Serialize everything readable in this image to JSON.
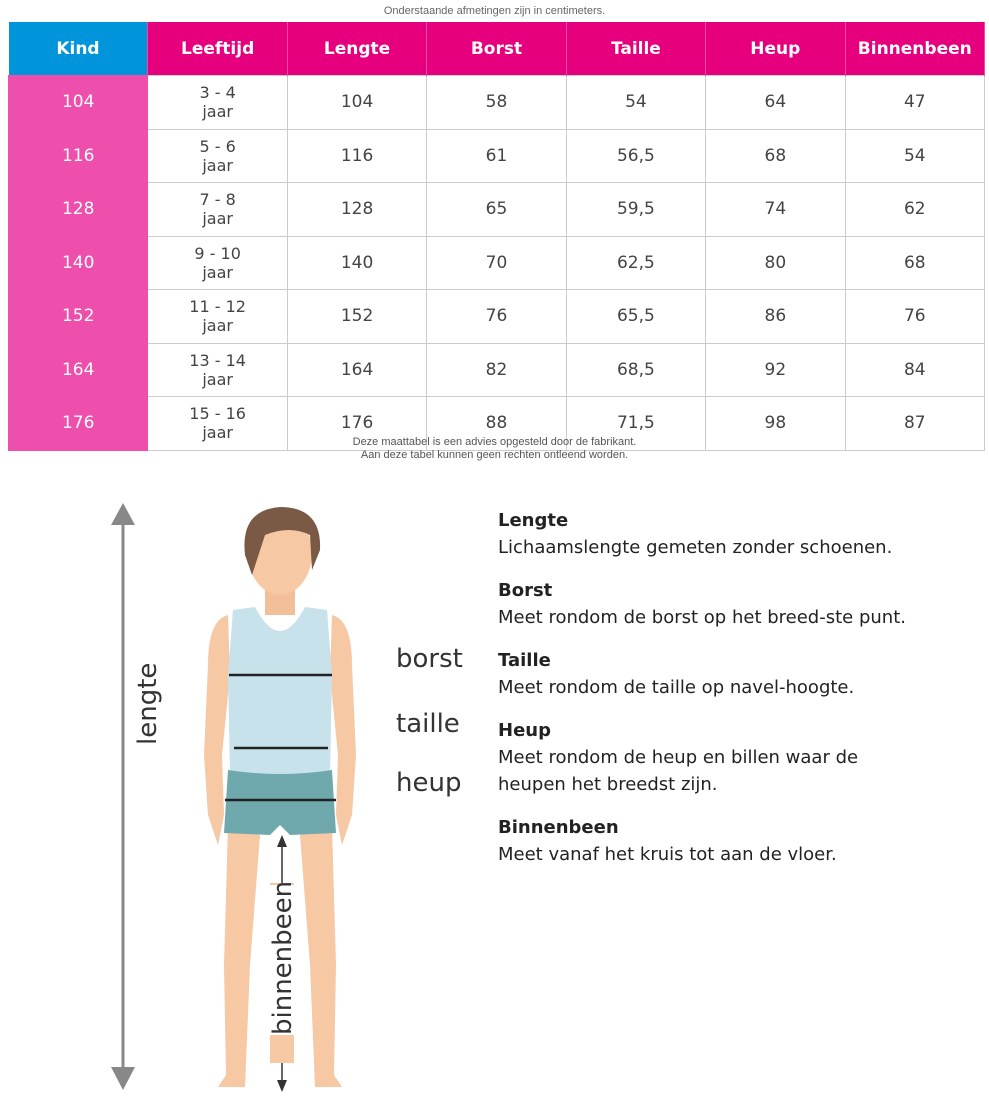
{
  "note_top": "Onderstaande afmetingen zijn in centimeters.",
  "table": {
    "headers": [
      "Kind",
      "Leeftijd",
      "Lengte",
      "Borst",
      "Taille",
      "Heup",
      "Binnenbeen"
    ],
    "rows": [
      [
        "104",
        "3 - 4",
        "jaar",
        "104",
        "58",
        "54",
        "64",
        "47"
      ],
      [
        "116",
        "5 - 6",
        "jaar",
        "116",
        "61",
        "56,5",
        "68",
        "54"
      ],
      [
        "128",
        "7 - 8",
        "jaar",
        "128",
        "65",
        "59,5",
        "74",
        "62"
      ],
      [
        "140",
        "9 - 10",
        "jaar",
        "140",
        "70",
        "62,5",
        "80",
        "68"
      ],
      [
        "152",
        "11 - 12",
        "jaar",
        "152",
        "76",
        "65,5",
        "86",
        "76"
      ],
      [
        "164",
        "13 - 14",
        "jaar",
        "164",
        "82",
        "68,5",
        "92",
        "84"
      ],
      [
        "176",
        "15 - 16",
        "jaar",
        "176",
        "88",
        "71,5",
        "98",
        "87"
      ]
    ]
  },
  "note_bottom": [
    "Deze maattabel is een advies opgesteld door de fabrikant.",
    "Aan deze tabel kunnen geen rechten ontleend worden."
  ],
  "figure": {
    "lengte": "lengte",
    "borst": "borst",
    "taille": "taille",
    "heup": "heup",
    "binnenbeen": "binnenbeen"
  },
  "descriptions": [
    {
      "title": "Lengte",
      "text": "Lichaamslengte gemeten zonder schoenen."
    },
    {
      "title": "Borst",
      "text": "Meet rondom de borst op het breed-ste punt."
    },
    {
      "title": "Taille",
      "text": "Meet rondom de taille op navel-hoogte."
    },
    {
      "title": "Heup",
      "text": "Meet rondom de heup en billen waar de heupen het breedst zijn."
    },
    {
      "title": "Binnenbeen",
      "text": "Meet vanaf het kruis tot aan de vloer."
    }
  ],
  "colors": {
    "header_pink": "#e6007e",
    "header_blue": "#0095db",
    "kind_cell": "#ef4fac"
  }
}
